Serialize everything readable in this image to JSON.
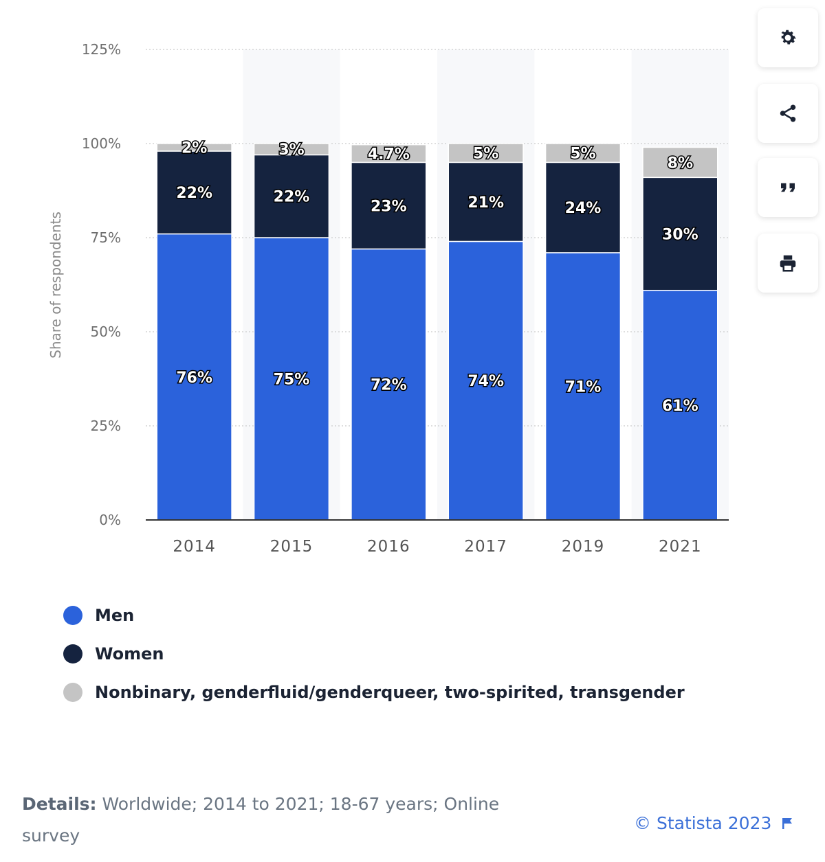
{
  "chart_data": {
    "type": "bar",
    "stacked": true,
    "categories": [
      "2014",
      "2015",
      "2016",
      "2017",
      "2019",
      "2021"
    ],
    "series": [
      {
        "name": "Men",
        "values": [
          76,
          75,
          72,
          74,
          71,
          61
        ],
        "labels": [
          "76%",
          "75%",
          "72%",
          "74%",
          "71%",
          "61%"
        ]
      },
      {
        "name": "Women",
        "values": [
          22,
          22,
          23,
          21,
          24,
          30
        ],
        "labels": [
          "22%",
          "22%",
          "23%",
          "21%",
          "24%",
          "30%"
        ]
      },
      {
        "name": "Nonbinary, genderfluid/genderqueer, two-spirited, transgender",
        "values": [
          2,
          3,
          4.7,
          5,
          5,
          8
        ],
        "labels": [
          "2%",
          "3%",
          "4.7%",
          "5%",
          "5%",
          "8%"
        ]
      }
    ],
    "colors": [
      "#2b62db",
      "#15233f",
      "#c4c4c4"
    ],
    "ylabel": "Share of respondents",
    "ylim": [
      0,
      125
    ],
    "yticks": [
      0,
      25,
      50,
      75,
      100,
      125
    ],
    "ytick_labels": [
      "0%",
      "25%",
      "50%",
      "75%",
      "100%",
      "125%"
    ],
    "grid": true,
    "legend_position": "bottom-left"
  },
  "toolbar": {
    "buttons": [
      {
        "name": "settings",
        "icon": "gear-icon"
      },
      {
        "name": "share",
        "icon": "share-icon"
      },
      {
        "name": "cite",
        "icon": "quote-icon"
      },
      {
        "name": "print",
        "icon": "print-icon"
      }
    ]
  },
  "footer": {
    "details_label": "Details:",
    "details_text": "Worldwide; 2014 to 2021; 18-67 years; Online survey",
    "copyright": "© Statista 2023"
  }
}
